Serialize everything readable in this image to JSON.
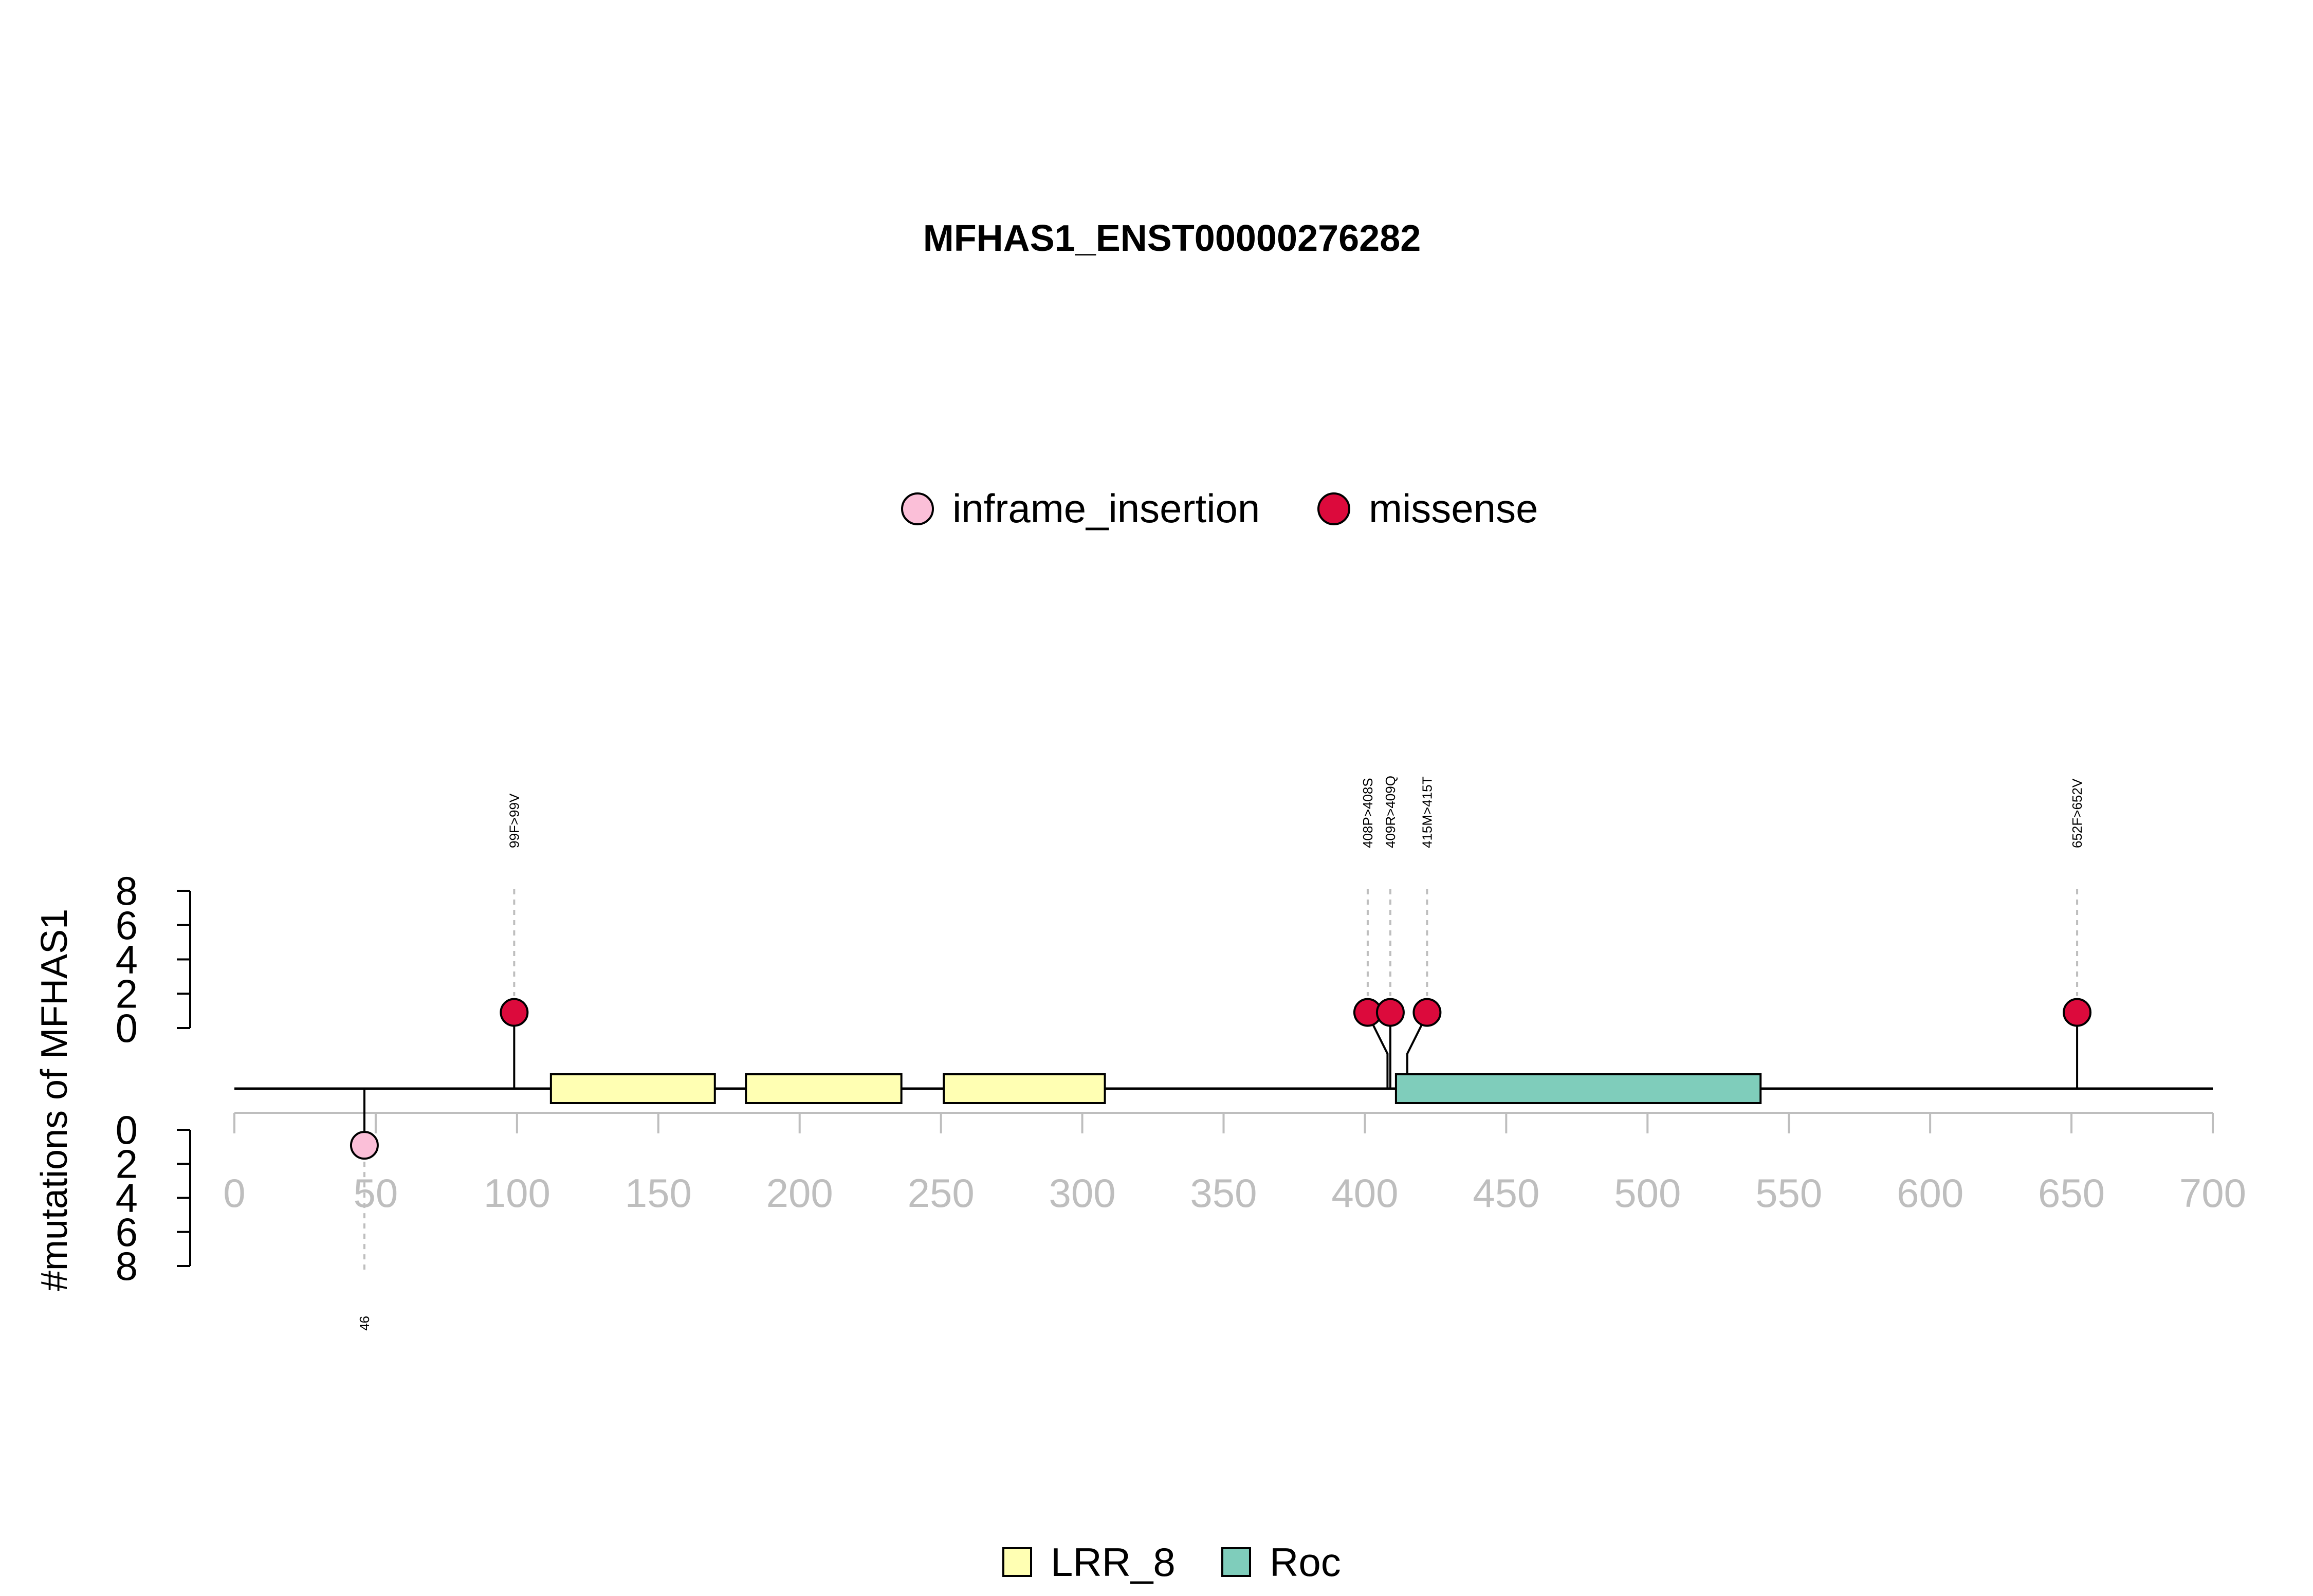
{
  "chart_data": {
    "type": "lollipop",
    "title": "MFHAS1_ENST00000276282",
    "ylabel": "#mutations of MFHAS1",
    "xlim": [
      0,
      700
    ],
    "x_ticks": [
      0,
      50,
      100,
      150,
      200,
      250,
      300,
      350,
      400,
      450,
      500,
      550,
      600,
      650,
      700
    ],
    "y_ticks": [
      0,
      2,
      4,
      6,
      8
    ],
    "y_range": [
      0,
      8
    ],
    "mutation_legend": [
      {
        "label": "inframe_insertion",
        "color": "#FBBFD8"
      },
      {
        "label": "missense",
        "color": "#DC0A3C"
      }
    ],
    "domain_legend": [
      {
        "label": "LRR_8",
        "color": "#FFFFB3"
      },
      {
        "label": "Roc",
        "color": "#7FCDBB"
      }
    ],
    "domains": [
      {
        "name": "LRR_8",
        "start": 112,
        "end": 170
      },
      {
        "name": "LRR_8",
        "start": 181,
        "end": 236
      },
      {
        "name": "LRR_8",
        "start": 251,
        "end": 308
      },
      {
        "name": "Roc",
        "start": 411,
        "end": 540
      }
    ],
    "mutations_top": [
      {
        "pos": 99,
        "count": 1,
        "type": "missense",
        "label": "99F>99V",
        "display_pos": 99
      },
      {
        "pos": 408,
        "count": 1,
        "type": "missense",
        "label": "408P>408S",
        "display_pos": 401
      },
      {
        "pos": 409,
        "count": 1,
        "type": "missense",
        "label": "409R>409Q",
        "display_pos": 409
      },
      {
        "pos": 415,
        "count": 1,
        "type": "missense",
        "label": "415M>415T",
        "display_pos": 422
      },
      {
        "pos": 652,
        "count": 1,
        "type": "missense",
        "label": "652F>652V",
        "display_pos": 652
      }
    ],
    "mutations_bottom": [
      {
        "pos": 46,
        "count": 1,
        "type": "inframe_insertion",
        "label": "46",
        "display_pos": 46
      }
    ],
    "colors": {
      "axis_tick_label": "#BEBEBE",
      "axis_line": "#BEBEBE",
      "backbone": "#000000",
      "guide_line": "#BEBEBE"
    }
  }
}
